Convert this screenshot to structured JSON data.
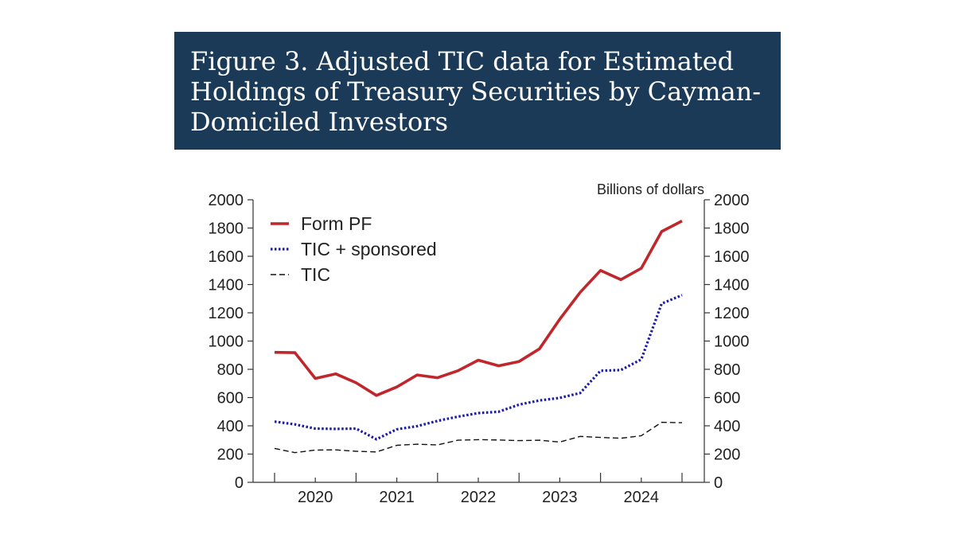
{
  "header": {
    "title": "Figure 3. Adjusted TIC data for Estimated Holdings of Treasury Securities by Cayman-Domiciled Investors"
  },
  "chart_data": {
    "type": "line",
    "title": "Figure 3. Adjusted TIC data for Estimated Holdings of Treasury Securities by Cayman-Domiciled Investors",
    "unit_label": "Billions of dollars",
    "ylim": [
      0,
      2000
    ],
    "y_ticks": [
      0,
      200,
      400,
      600,
      800,
      1000,
      1200,
      1400,
      1600,
      1800,
      2000
    ],
    "x_tick_labels": [
      "2020",
      "2021",
      "2022",
      "2023",
      "2024"
    ],
    "x": [
      "2019-Q4",
      "2020-Q1",
      "2020-Q2",
      "2020-Q3",
      "2020-Q4",
      "2021-Q1",
      "2021-Q2",
      "2021-Q3",
      "2021-Q4",
      "2022-Q1",
      "2022-Q2",
      "2022-Q3",
      "2022-Q4",
      "2023-Q1",
      "2023-Q2",
      "2023-Q3",
      "2023-Q4",
      "2024-Q1",
      "2024-Q2",
      "2024-Q3",
      "2024-Q4"
    ],
    "series": [
      {
        "name": "Form PF",
        "color": "#c0272d",
        "style": "solid",
        "values": [
          920,
          918,
          735,
          768,
          705,
          615,
          675,
          760,
          740,
          790,
          865,
          825,
          855,
          945,
          1155,
          1345,
          1500,
          1435,
          1515,
          1775,
          1850
        ]
      },
      {
        "name": "TIC + sponsored",
        "color": "#1a1aa6",
        "style": "dotted",
        "values": [
          430,
          410,
          380,
          378,
          380,
          305,
          375,
          398,
          435,
          465,
          490,
          500,
          550,
          580,
          598,
          632,
          790,
          795,
          870,
          1265,
          1325
        ]
      },
      {
        "name": "TIC",
        "color": "#111111",
        "style": "dashed",
        "values": [
          240,
          210,
          228,
          230,
          220,
          215,
          262,
          270,
          265,
          298,
          302,
          300,
          295,
          298,
          285,
          325,
          318,
          312,
          330,
          425,
          422
        ]
      }
    ],
    "legend_position": "top-left",
    "grid": false
  }
}
